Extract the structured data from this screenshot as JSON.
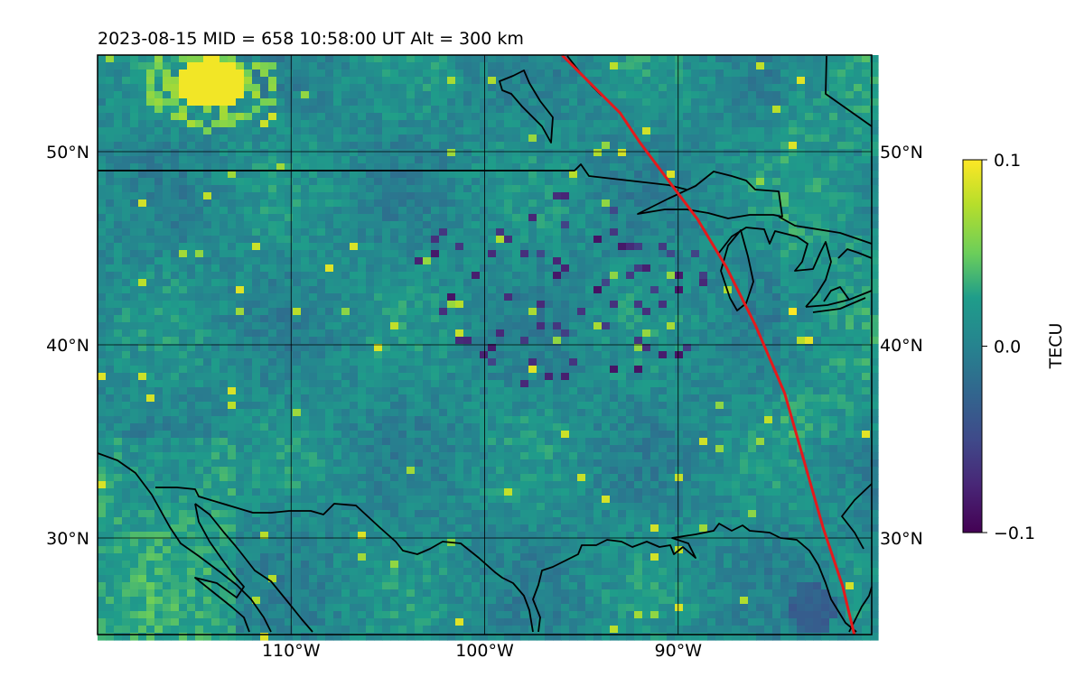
{
  "chart_data": {
    "type": "heatmap",
    "title": "2023-08-15  MID = 658    10:58:00  UT  Alt = 300 km",
    "x_range_deg_lon": [
      -120,
      -80
    ],
    "y_range_deg_lat": [
      25,
      55
    ],
    "x_ticks": [
      {
        "value": -110,
        "label": "110°W"
      },
      {
        "value": -100,
        "label": "100°W"
      },
      {
        "value": -90,
        "label": "90°W"
      }
    ],
    "y_ticks": [
      {
        "value": 50,
        "label": "50°N"
      },
      {
        "value": 40,
        "label": "40°N"
      },
      {
        "value": 30,
        "label": "30°N"
      }
    ],
    "grid": true,
    "colormap": "viridis",
    "colorbar": {
      "label": "TECU",
      "min": -0.1,
      "max": 0.1,
      "ticks": [
        {
          "value": 0.1,
          "label": "0.1"
        },
        {
          "value": 0.0,
          "label": "0.0"
        },
        {
          "value": -0.1,
          "label": "−0.1"
        }
      ]
    },
    "overlays": {
      "red_track_lonlat": [
        [
          -96.0,
          55
        ],
        [
          -95.0,
          54.0
        ],
        [
          -93.0,
          52.0
        ],
        [
          -92.0,
          50.5
        ],
        [
          -90.5,
          48.5
        ],
        [
          -89.0,
          46.5
        ],
        [
          -87.5,
          44.0
        ],
        [
          -86.0,
          41.0
        ],
        [
          -84.5,
          37.5
        ],
        [
          -83.5,
          34.0
        ],
        [
          -82.5,
          30.5
        ],
        [
          -81.5,
          27.5
        ],
        [
          -80.9,
          25
        ]
      ],
      "coastline_color": "#000000",
      "track_color": "#e41a1c"
    }
  }
}
